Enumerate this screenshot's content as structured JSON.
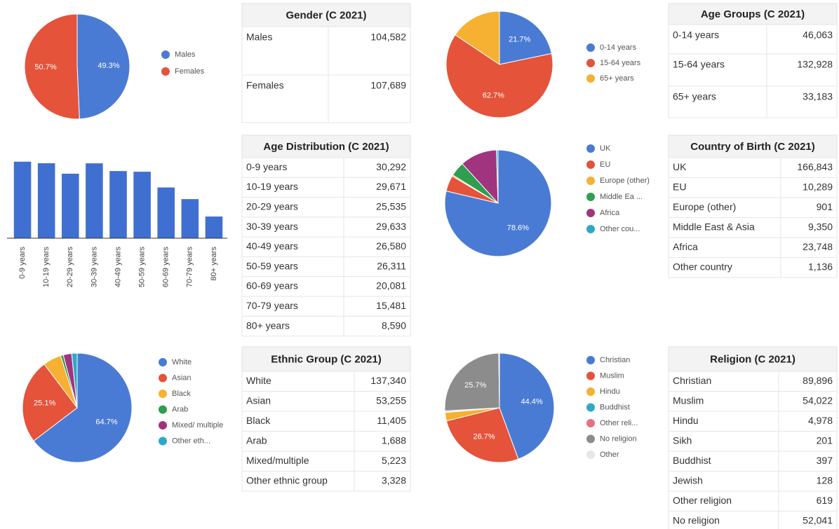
{
  "chart_data": [
    {
      "type": "pie",
      "categories": [
        "Males",
        "Females"
      ],
      "values": [
        49.3,
        50.7
      ],
      "value_labels": [
        "49.3%",
        "50.7%"
      ],
      "colors": [
        "#4a7bd4",
        "#e4533a"
      ]
    },
    {
      "type": "pie",
      "categories": [
        "0-14 years",
        "15-64 years",
        "65+ years"
      ],
      "values": [
        21.7,
        62.7,
        15.6
      ],
      "value_labels": [
        "21.7%",
        "62.7%",
        null
      ],
      "colors": [
        "#4a7bd4",
        "#e4533a",
        "#f6b032"
      ]
    },
    {
      "type": "bar",
      "categories": [
        "0-9 years",
        "10-19 years",
        "20-29 years",
        "30-39 years",
        "40-49 years",
        "50-59 years",
        "60-69 years",
        "70-79 years",
        "80+ years"
      ],
      "values": [
        30292,
        29671,
        25535,
        29633,
        26580,
        26311,
        20081,
        15481,
        8590
      ],
      "color": "#3f6fd1"
    },
    {
      "type": "pie",
      "categories": [
        "UK",
        "EU",
        "Europe (other)",
        "Middle Ea ...",
        "Africa",
        "Other cou..."
      ],
      "values": [
        78.6,
        4.8,
        0.4,
        4.4,
        11.2,
        0.5
      ],
      "value_labels": [
        "78.6%",
        null,
        null,
        null,
        null,
        null
      ],
      "colors": [
        "#4a7bd4",
        "#e4533a",
        "#f6b032",
        "#2f9e4f",
        "#a1347f",
        "#2ea8c6"
      ]
    },
    {
      "type": "pie",
      "categories": [
        "White",
        "Asian",
        "Black",
        "Arab",
        "Mixed/ multiple",
        "Other eth..."
      ],
      "values": [
        64.7,
        25.1,
        5.4,
        0.8,
        2.5,
        1.6
      ],
      "value_labels": [
        "64.7%",
        "25.1%",
        null,
        null,
        null,
        null
      ],
      "colors": [
        "#4a7bd4",
        "#e4533a",
        "#f6b032",
        "#2f9e4f",
        "#a1347f",
        "#2ea8c6"
      ]
    },
    {
      "type": "pie",
      "categories": [
        "Christian",
        "Muslim",
        "Hindu",
        "Buddhist",
        "Other reli...",
        "No religion",
        "Other"
      ],
      "values": [
        44.4,
        26.7,
        2.5,
        0.2,
        0.3,
        25.7,
        0.2
      ],
      "value_labels": [
        "44.4%",
        "26.7%",
        null,
        null,
        null,
        "25.7%",
        null
      ],
      "colors": [
        "#4a7bd4",
        "#e4533a",
        "#f6b032",
        "#2ea8c6",
        "#e9707e",
        "#8c8c8c",
        "#e6e6e6"
      ]
    }
  ],
  "tables": [
    {
      "title": "Gender (C 2021)",
      "rows": [
        [
          "Males",
          "104,582"
        ],
        [
          "Females",
          "107,689"
        ]
      ]
    },
    {
      "title": "Age Groups (C 2021)",
      "rows": [
        [
          "0-14 years",
          "46,063"
        ],
        [
          "15-64 years",
          "132,928"
        ],
        [
          "65+ years",
          "33,183"
        ]
      ]
    },
    {
      "title": "Age Distribution (C 2021)",
      "rows": [
        [
          "0-9 years",
          "30,292"
        ],
        [
          "10-19 years",
          "29,671"
        ],
        [
          "20-29 years",
          "25,535"
        ],
        [
          "30-39 years",
          "29,633"
        ],
        [
          "40-49 years",
          "26,580"
        ],
        [
          "50-59 years",
          "26,311"
        ],
        [
          "60-69 years",
          "20,081"
        ],
        [
          "70-79 years",
          "15,481"
        ],
        [
          "80+ years",
          "8,590"
        ]
      ]
    },
    {
      "title": "Country of Birth (C 2021)",
      "rows": [
        [
          "UK",
          "166,843"
        ],
        [
          "EU",
          "10,289"
        ],
        [
          "Europe (other)",
          "901"
        ],
        [
          "Middle East & Asia",
          "9,350"
        ],
        [
          "Africa",
          "23,748"
        ],
        [
          "Other country",
          "1,136"
        ]
      ]
    },
    {
      "title": "Ethnic Group (C 2021)",
      "rows": [
        [
          "White",
          "137,340"
        ],
        [
          "Asian",
          "53,255"
        ],
        [
          "Black",
          "11,405"
        ],
        [
          "Arab",
          "1,688"
        ],
        [
          "Mixed/multiple",
          "5,223"
        ],
        [
          "Other ethnic group",
          "3,328"
        ]
      ]
    },
    {
      "title": "Religion (C 2021)",
      "rows": [
        [
          "Christian",
          "89,896"
        ],
        [
          "Muslim",
          "54,022"
        ],
        [
          "Hindu",
          "4,978"
        ],
        [
          "Sikh",
          "201"
        ],
        [
          "Buddhist",
          "397"
        ],
        [
          "Jewish",
          "128"
        ],
        [
          "Other religion",
          "619"
        ],
        [
          "No religion",
          "52,041"
        ]
      ]
    }
  ]
}
